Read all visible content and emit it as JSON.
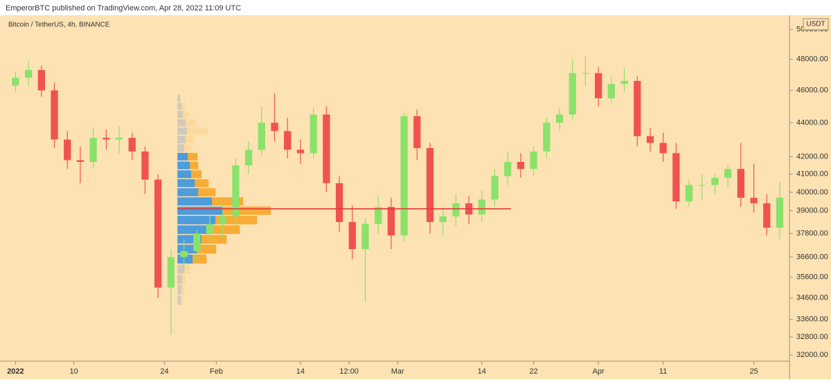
{
  "header": "EmperorBTC published on TradingView.com, Apr 28, 2022 11:09 UTC",
  "chart_data": {
    "type": "candlestick",
    "title": "Bitcoin / TetherUS, 4h, BINANCE",
    "currency": "USDT",
    "log_scale": true,
    "up_color": "#8be26a",
    "down_color": "#ef5350",
    "x": [
      0,
      2,
      4,
      6,
      8,
      10,
      12,
      14,
      16,
      18,
      20,
      22,
      24,
      26,
      28,
      30,
      32,
      34,
      36,
      38,
      40,
      42,
      44,
      46,
      48,
      50,
      52,
      54,
      56,
      58,
      60,
      62,
      64,
      66,
      68,
      70,
      72,
      74,
      76,
      78,
      80,
      82,
      84,
      86,
      88,
      90,
      92,
      94,
      96,
      98,
      100,
      102,
      104,
      106,
      108,
      110,
      112,
      114,
      116,
      118
    ],
    "open": [
      46300,
      46800,
      47300,
      46000,
      43000,
      41800,
      41700,
      43100,
      43000,
      43100,
      42300,
      40700,
      35100,
      36600,
      36900,
      37800,
      38300,
      38700,
      41500,
      42400,
      44000,
      43500,
      42400,
      42200,
      44500,
      40500,
      38400,
      37000,
      38300,
      39200,
      37700,
      44400,
      42500,
      38400,
      38700,
      39400,
      38800,
      39600,
      40900,
      41700,
      41300,
      42300,
      44000,
      44500,
      47100,
      47100,
      45500,
      46400,
      46600,
      43200,
      42800,
      42200,
      39500,
      40400,
      40400,
      40800,
      41300,
      39700,
      39400,
      38100
    ],
    "high": [
      47200,
      47900,
      47600,
      46500,
      43500,
      42600,
      43700,
      43600,
      43800,
      43400,
      42600,
      41000,
      37000,
      37500,
      38000,
      38800,
      39300,
      41900,
      42900,
      45000,
      45800,
      44300,
      43000,
      44900,
      45000,
      40900,
      39300,
      38600,
      39800,
      39700,
      44600,
      44800,
      42800,
      39200,
      39900,
      39800,
      40100,
      41300,
      42300,
      42200,
      42600,
      44300,
      44900,
      48000,
      48200,
      47500,
      46900,
      47400,
      46900,
      43700,
      43400,
      42800,
      40700,
      41000,
      41000,
      41500,
      42800,
      41600,
      39900,
      40600
    ],
    "low": [
      45900,
      46300,
      45600,
      42500,
      41300,
      40500,
      41300,
      42400,
      42200,
      41800,
      39900,
      34600,
      32900,
      35900,
      36400,
      37300,
      37600,
      38200,
      41000,
      42100,
      42900,
      41900,
      41600,
      41900,
      40000,
      37900,
      36500,
      34400,
      37800,
      37000,
      37400,
      41800,
      37800,
      37700,
      38200,
      38300,
      38400,
      39200,
      40400,
      40800,
      40900,
      41900,
      43500,
      44200,
      46300,
      45000,
      45200,
      45900,
      42600,
      42300,
      41700,
      39100,
      39200,
      39600,
      39900,
      40300,
      39200,
      38900,
      37700,
      37500
    ],
    "close": [
      46800,
      47300,
      46000,
      43000,
      41800,
      41700,
      43100,
      43000,
      43100,
      42300,
      40700,
      35100,
      36600,
      36900,
      37800,
      38300,
      38700,
      41500,
      42400,
      44000,
      43500,
      42400,
      42200,
      44500,
      40500,
      38400,
      37000,
      38300,
      39200,
      37700,
      44400,
      42500,
      38400,
      38700,
      39400,
      38800,
      39600,
      40900,
      41700,
      41300,
      42300,
      44000,
      44500,
      47100,
      47100,
      45500,
      46400,
      46600,
      43200,
      42800,
      42200,
      39500,
      40400,
      40400,
      40800,
      41300,
      39700,
      39400,
      38100,
      39700
    ],
    "xlim": [
      -2.4,
      119.5
    ],
    "ylim": [
      31730,
      50990
    ],
    "xticks": [
      {
        "value": 0,
        "label": "2022"
      },
      {
        "value": 9,
        "label": "10"
      },
      {
        "value": 23,
        "label": "24"
      },
      {
        "value": 31,
        "label": "Feb"
      },
      {
        "value": 44,
        "label": "14"
      },
      {
        "value": 51.5,
        "label": "12:00"
      },
      {
        "value": 59,
        "label": "Mar"
      },
      {
        "value": 72,
        "label": "14"
      },
      {
        "value": 80,
        "label": "22"
      },
      {
        "value": 90,
        "label": "Apr"
      },
      {
        "value": 100,
        "label": "11"
      },
      {
        "value": 114,
        "label": "25"
      }
    ],
    "yticks": [
      {
        "value": 32000,
        "label": "32000.00"
      },
      {
        "value": 32800,
        "label": "32800.00"
      },
      {
        "value": 33600,
        "label": "33600.00"
      },
      {
        "value": 34600,
        "label": "34600.00"
      },
      {
        "value": 35600,
        "label": "35600.00"
      },
      {
        "value": 36600,
        "label": "36600.00"
      },
      {
        "value": 37800,
        "label": "37800.00"
      },
      {
        "value": 39000,
        "label": "39000.00"
      },
      {
        "value": 40000,
        "label": "40000.00"
      },
      {
        "value": 41000,
        "label": "41000.00"
      },
      {
        "value": 42000,
        "label": "42000.00"
      },
      {
        "value": 44000,
        "label": "44000.00"
      },
      {
        "value": 46000,
        "label": "46000.00"
      },
      {
        "value": 48000,
        "label": "48000.00"
      },
      {
        "value": 50000,
        "label": "50000.00"
      }
    ],
    "volume_profile": {
      "start": 25,
      "prices": [
        34500,
        35000,
        35500,
        36000,
        36500,
        37000,
        37500,
        38000,
        38500,
        39000,
        39500,
        40000,
        40500,
        41000,
        41500,
        42000,
        42500,
        43000,
        43500,
        44000,
        44500,
        45000,
        45500
      ],
      "up": [
        5,
        6,
        7,
        10,
        22,
        28,
        35,
        45,
        55,
        65,
        50,
        30,
        25,
        20,
        18,
        15,
        10,
        12,
        14,
        12,
        8,
        6,
        4
      ],
      "down": [
        3,
        4,
        5,
        8,
        20,
        28,
        36,
        45,
        60,
        70,
        45,
        25,
        20,
        15,
        12,
        14,
        10,
        12,
        30,
        15,
        8,
        5,
        2
      ],
      "value_area": [
        36300,
        42100
      ],
      "va_up_color": "#2f8fe0",
      "va_down_color": "#f5a21e",
      "up_color": "#c9c6bc",
      "down_color": "#fcd89a"
    },
    "poc": {
      "price": 39100,
      "start": 25,
      "end": 76.5,
      "color": "#e53935"
    }
  }
}
